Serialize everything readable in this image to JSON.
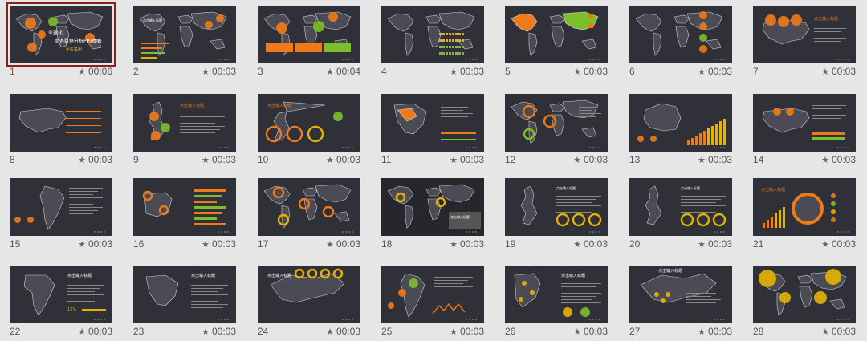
{
  "colors": {
    "orange": "#f07a1a",
    "green": "#7cbf2a",
    "yellow": "#e6b400",
    "slide_bg": "#2f3038",
    "land": "#4a4b55",
    "outline": "#cfd0d6"
  },
  "slides": [
    {
      "number": "1",
      "time": "00:06",
      "selected": true,
      "kind": "world-title",
      "title_lines": [
        "全球化",
        "商务数据分析PPT图表",
        "圣医集团"
      ]
    },
    {
      "number": "2",
      "time": "00:03",
      "kind": "world-bars",
      "heading": "点击输入标题"
    },
    {
      "number": "3",
      "time": "00:04",
      "kind": "world-blocks"
    },
    {
      "number": "4",
      "time": "00:03",
      "kind": "world-list"
    },
    {
      "number": "5",
      "time": "00:03",
      "kind": "world-color"
    },
    {
      "number": "6",
      "time": "00:03",
      "kind": "world-icons"
    },
    {
      "number": "7",
      "time": "00:03",
      "kind": "usa-circles",
      "heading": "点击输入标题"
    },
    {
      "number": "8",
      "time": "00:03",
      "kind": "usa-lines"
    },
    {
      "number": "9",
      "time": "00:03",
      "kind": "uk-circles",
      "heading": "点击输入标题"
    },
    {
      "number": "10",
      "time": "00:03",
      "kind": "donuts",
      "heading": "点击输入标题"
    },
    {
      "number": "11",
      "time": "00:03",
      "kind": "brazil"
    },
    {
      "number": "12",
      "time": "00:03",
      "kind": "world-rings"
    },
    {
      "number": "13",
      "time": "00:03",
      "kind": "australia"
    },
    {
      "number": "14",
      "time": "00:03",
      "kind": "usa-bars"
    },
    {
      "number": "15",
      "time": "00:03",
      "kind": "samerica"
    },
    {
      "number": "16",
      "time": "00:03",
      "kind": "iberia-bars"
    },
    {
      "number": "17",
      "time": "00:03",
      "kind": "world-rings2"
    },
    {
      "number": "18",
      "time": "00:03",
      "kind": "world-dark",
      "heading": "点击输入标题"
    },
    {
      "number": "19",
      "time": "00:03",
      "kind": "uk-donuts",
      "heading": "点击输入标题"
    },
    {
      "number": "20",
      "time": "00:03",
      "kind": "uk-dots",
      "heading": "点击输入标题"
    },
    {
      "number": "21",
      "time": "00:03",
      "kind": "globe",
      "heading": "点击输入标题"
    },
    {
      "number": "22",
      "time": "00:03",
      "kind": "africa",
      "heading": "点击输入标题"
    },
    {
      "number": "23",
      "time": "00:03",
      "kind": "brazil2",
      "heading": "点击输入标题"
    },
    {
      "number": "24",
      "time": "00:03",
      "kind": "europe",
      "heading": "点击输入标题"
    },
    {
      "number": "25",
      "time": "00:03",
      "kind": "samerica2"
    },
    {
      "number": "26",
      "time": "00:03",
      "kind": "denmark",
      "heading": "点击输入标题"
    },
    {
      "number": "27",
      "time": "00:03",
      "kind": "russia",
      "heading": "点击输入标题"
    },
    {
      "number": "28",
      "time": "00:03",
      "kind": "world-gold"
    }
  ]
}
